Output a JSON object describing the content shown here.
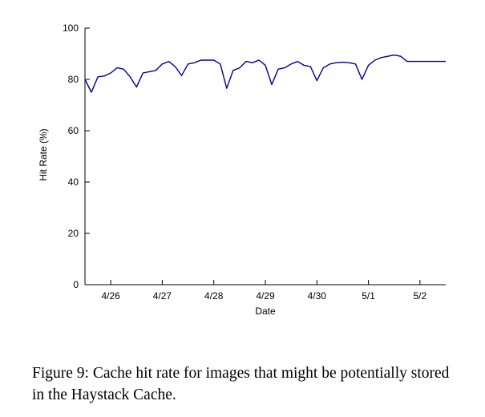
{
  "chart_data": {
    "type": "line",
    "title": "",
    "xlabel": "Date",
    "ylabel": "Hit Rate (%)",
    "ylim": [
      0,
      100
    ],
    "yticks": [
      0,
      20,
      40,
      60,
      80,
      100
    ],
    "xlim": [
      "4/25 12:00",
      "5/2 12:00"
    ],
    "xtick_labels": [
      "4/26",
      "4/27",
      "4/28",
      "4/29",
      "4/30",
      "5/1",
      "5/2"
    ],
    "grid": false,
    "series_color": "#00008b",
    "series": [
      {
        "x": [
          "4/25 12:00",
          "4/25 15:00",
          "4/25 18:00",
          "4/25 21:00",
          "4/26 00:00",
          "4/26 03:00",
          "4/26 06:00",
          "4/26 09:00",
          "4/26 12:00",
          "4/26 15:00",
          "4/26 18:00",
          "4/26 21:00",
          "4/27 00:00",
          "4/27 03:00",
          "4/27 06:00",
          "4/27 09:00",
          "4/27 12:00",
          "4/27 15:00",
          "4/27 18:00",
          "4/27 21:00",
          "4/28 00:00",
          "4/28 03:00",
          "4/28 06:00",
          "4/28 09:00",
          "4/28 12:00",
          "4/28 15:00",
          "4/28 18:00",
          "4/28 21:00",
          "4/29 00:00",
          "4/29 03:00",
          "4/29 06:00",
          "4/29 09:00",
          "4/29 12:00",
          "4/29 15:00",
          "4/29 18:00",
          "4/29 21:00",
          "4/30 00:00",
          "4/30 03:00",
          "4/30 06:00",
          "4/30 09:00",
          "4/30 12:00",
          "4/30 15:00",
          "4/30 18:00",
          "4/30 21:00",
          "5/1 00:00",
          "5/1 03:00",
          "5/1 06:00",
          "5/1 09:00",
          "5/1 12:00",
          "5/1 15:00",
          "5/1 18:00",
          "5/1 21:00",
          "5/2 00:00",
          "5/2 03:00",
          "5/2 06:00",
          "5/2 09:00",
          "5/2 12:00"
        ],
        "values": [
          80.0,
          75.0,
          81.0,
          81.3,
          82.5,
          84.5,
          84.0,
          81.0,
          77.0,
          82.5,
          83.0,
          83.5,
          86.0,
          87.0,
          85.0,
          81.5,
          86.0,
          86.5,
          87.5,
          87.5,
          87.5,
          86.0,
          76.5,
          83.5,
          84.5,
          87.0,
          86.5,
          87.5,
          85.5,
          78.0,
          84.0,
          84.5,
          86.0,
          87.0,
          85.5,
          85.0,
          79.5,
          84.5,
          86.0,
          86.5,
          86.7,
          86.5,
          86.0,
          80.0,
          85.5,
          87.5,
          88.5,
          89.0,
          89.5,
          89.0,
          87.0,
          87.0,
          87.0,
          87.0,
          87.0,
          87.0,
          87.0
        ]
      }
    ]
  },
  "caption": "Figure 9: Cache hit rate for images that might be potentially stored in the Haystack Cache."
}
